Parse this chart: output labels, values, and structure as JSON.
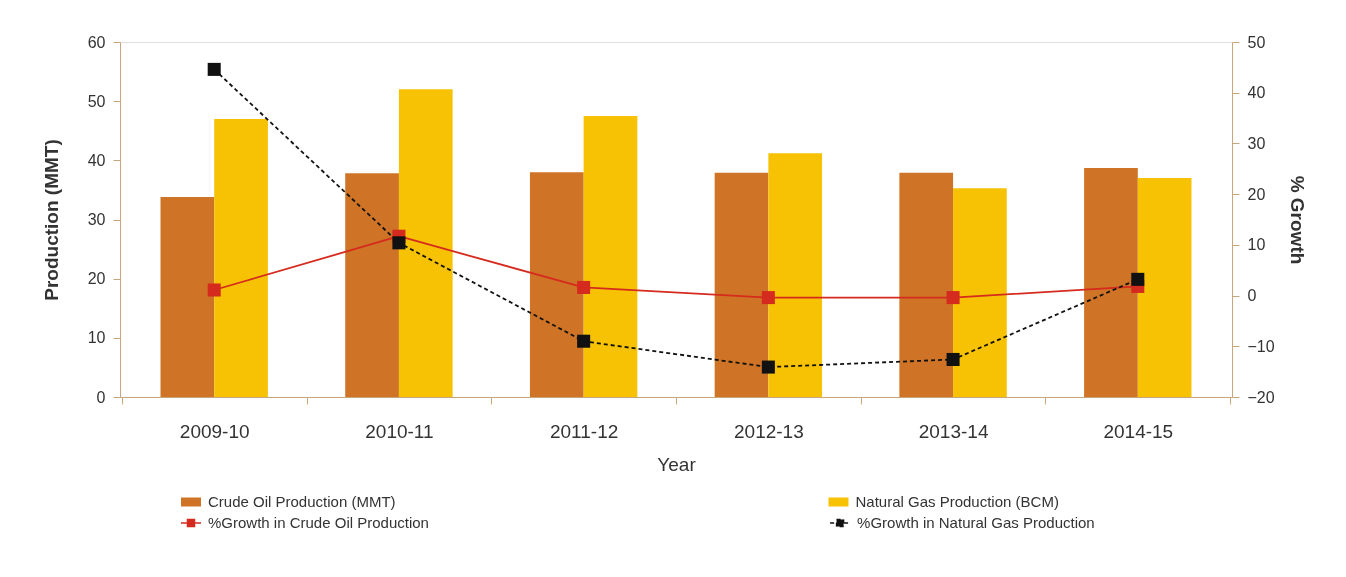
{
  "chart_data": {
    "type": "bar",
    "categories": [
      "2009-10",
      "2010-11",
      "2011-12",
      "2012-13",
      "2013-14",
      "2014-15"
    ],
    "xlabel": "Year",
    "ylabel": "Production (MMT)",
    "y2label": "% Growth",
    "ylim": [
      0,
      60
    ],
    "yticks": [
      0,
      10,
      20,
      30,
      40,
      50,
      60
    ],
    "y2lim": [
      -20,
      50
    ],
    "y2ticks": [
      -20,
      -10,
      0,
      10,
      20,
      30,
      40,
      50
    ],
    "series": [
      {
        "name": "Crude Oil Production (MMT)",
        "color": "#cf7426",
        "values": [
          33.8,
          37.8,
          38.0,
          37.9,
          37.9,
          38.7
        ]
      },
      {
        "name": "Natural Gas Production (BCM)",
        "color": "#f6c203",
        "values": [
          47.0,
          52.0,
          47.5,
          41.2,
          35.3,
          37.0
        ]
      },
      {
        "name": "%Growth in Crude Oil Production",
        "type": "line",
        "axis": "y2",
        "color": "#d52a1e",
        "marker": "square",
        "line_style": "solid",
        "values": [
          1.1,
          11.7,
          1.6,
          -0.4,
          -0.4,
          1.8
        ]
      },
      {
        "name": "%Growth in Natural Gas Production",
        "type": "line",
        "axis": "y2",
        "color": "#111111",
        "marker": "square",
        "line_style": "dashed",
        "values": [
          44.6,
          10.4,
          -9.0,
          -14.1,
          -12.6,
          3.2
        ]
      }
    ],
    "legend": "bottom",
    "grid": false
  }
}
